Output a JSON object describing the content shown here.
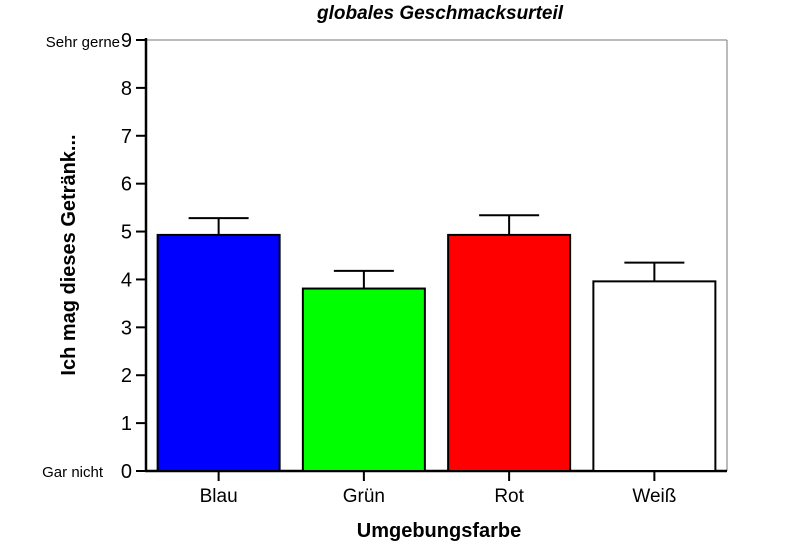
{
  "chart_data": {
    "type": "bar",
    "title": "globales Geschmacksurteil",
    "xlabel": "Umgebungsfarbe",
    "ylabel": "Ich mag dieses Getränk...",
    "categories": [
      "Blau",
      "Grün",
      "Rot",
      "Weiß"
    ],
    "values": [
      4.93,
      3.81,
      4.93,
      3.96
    ],
    "error_upper": [
      5.28,
      4.18,
      5.34,
      4.35
    ],
    "bar_colors": [
      "#0000ff",
      "#00ff00",
      "#ff0000",
      "#ffffff"
    ],
    "ylim": [
      0,
      9
    ],
    "yticks": [
      0,
      1,
      2,
      3,
      4,
      5,
      6,
      7,
      8,
      9
    ],
    "ytick_text_labels": {
      "top": "Sehr gerne",
      "bottom": "Gar nicht"
    },
    "grid": false,
    "legend": "none"
  }
}
